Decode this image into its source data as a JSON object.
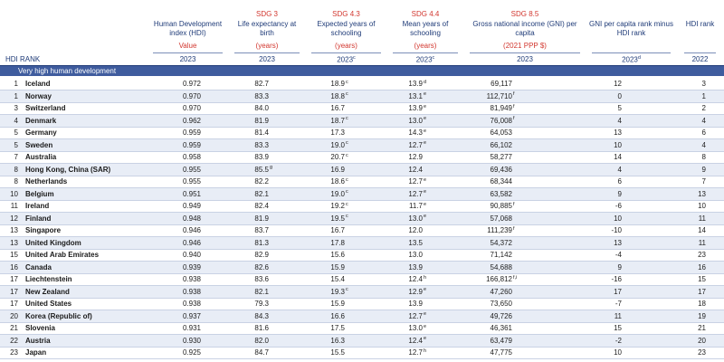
{
  "table": {
    "rank_label": "HDI RANK",
    "section": "Very high human development",
    "columns": [
      {
        "title": "Human Development index (HDI)",
        "unit": "Value",
        "year": "2023"
      },
      {
        "sdg": "SDG 3",
        "title": "Life expectancy at birth",
        "unit": "(years)",
        "year": "2023"
      },
      {
        "sdg": "SDG 4.3",
        "title": "Expected years of schooling",
        "unit": "(years)",
        "year": "2023",
        "year_note": "c"
      },
      {
        "sdg": "SDG 4.4",
        "title": "Mean years of schooling",
        "unit": "(years)",
        "year": "2023",
        "year_note": "c"
      },
      {
        "sdg": "SDG 8.5",
        "title": "Gross national income (GNI) per capita",
        "unit": "(2021 PPP $)",
        "year": "2023"
      },
      {
        "title": "GNI per capita rank minus HDI rank",
        "year": "2023",
        "year_note": "d"
      },
      {
        "title": "HDI rank",
        "year": "2022"
      }
    ],
    "rows": [
      [
        "1",
        "Iceland",
        "0.972",
        "82.7",
        {
          "text": "18.9",
          "note": "c"
        },
        {
          "text": "13.9",
          "note": "d"
        },
        "69,117",
        "12",
        "3"
      ],
      [
        "1",
        "Norway",
        "0.970",
        "83.3",
        {
          "text": "18.8",
          "note": "c"
        },
        {
          "text": "13.1",
          "note": "e"
        },
        {
          "text": "112,710",
          "note": "f"
        },
        "0",
        "1"
      ],
      [
        "3",
        "Switzerland",
        "0.970",
        "84.0",
        "16.7",
        {
          "text": "13.9",
          "note": "e"
        },
        {
          "text": "81,949",
          "note": "f"
        },
        "5",
        "2"
      ],
      [
        "4",
        "Denmark",
        "0.962",
        "81.9",
        {
          "text": "18.7",
          "note": "c"
        },
        {
          "text": "13.0",
          "note": "e"
        },
        {
          "text": "76,008",
          "note": "f"
        },
        "4",
        "4"
      ],
      [
        "5",
        "Germany",
        "0.959",
        "81.4",
        "17.3",
        {
          "text": "14.3",
          "note": "e"
        },
        "64,053",
        "13",
        "6"
      ],
      [
        "5",
        "Sweden",
        "0.959",
        "83.3",
        {
          "text": "19.0",
          "note": "c"
        },
        {
          "text": "12.7",
          "note": "e"
        },
        "66,102",
        "10",
        "4"
      ],
      [
        "7",
        "Australia",
        "0.958",
        "83.9",
        {
          "text": "20.7",
          "note": "c"
        },
        "12.9",
        "58,277",
        "14",
        "8"
      ],
      [
        "8",
        "Hong Kong, China (SAR)",
        "0.955",
        {
          "text": "85.5",
          "note": "g"
        },
        "16.9",
        "12.4",
        "69,436",
        "4",
        "9"
      ],
      [
        "8",
        "Netherlands",
        "0.955",
        "82.2",
        {
          "text": "18.6",
          "note": "c"
        },
        {
          "text": "12.7",
          "note": "e"
        },
        "68,344",
        "6",
        "7"
      ],
      [
        "10",
        "Belgium",
        "0.951",
        "82.1",
        {
          "text": "19.0",
          "note": "c"
        },
        {
          "text": "12.7",
          "note": "e"
        },
        "63,582",
        "9",
        "13"
      ],
      [
        "11",
        "Ireland",
        "0.949",
        "82.4",
        {
          "text": "19.2",
          "note": "c"
        },
        {
          "text": "11.7",
          "note": "e"
        },
        {
          "text": "90,885",
          "note": "f"
        },
        "-6",
        "10"
      ],
      [
        "12",
        "Finland",
        "0.948",
        "81.9",
        {
          "text": "19.5",
          "note": "c"
        },
        {
          "text": "13.0",
          "note": "e"
        },
        "57,068",
        "10",
        "11"
      ],
      [
        "13",
        "Singapore",
        "0.946",
        "83.7",
        "16.7",
        "12.0",
        {
          "text": "111,239",
          "note": "f"
        },
        "-10",
        "14"
      ],
      [
        "13",
        "United Kingdom",
        "0.946",
        "81.3",
        "17.8",
        "13.5",
        "54,372",
        "13",
        "11"
      ],
      [
        "15",
        "United Arab Emirates",
        "0.940",
        "82.9",
        "15.6",
        "13.0",
        "71,142",
        "-4",
        "23"
      ],
      [
        "16",
        "Canada",
        "0.939",
        "82.6",
        "15.9",
        "13.9",
        "54,688",
        "9",
        "16"
      ],
      [
        "17",
        "Liechtenstein",
        "0.938",
        "83.6",
        "15.4",
        {
          "text": "12.4",
          "note": "h"
        },
        {
          "text": "166,812",
          "note": "f,i"
        },
        "-16",
        "15"
      ],
      [
        "17",
        "New Zealand",
        "0.938",
        "82.1",
        {
          "text": "19.3",
          "note": "c"
        },
        {
          "text": "12.9",
          "note": "e"
        },
        "47,260",
        "17",
        "17"
      ],
      [
        "17",
        "United States",
        "0.938",
        "79.3",
        "15.9",
        "13.9",
        "73,650",
        "-7",
        "18"
      ],
      [
        "20",
        "Korea (Republic of)",
        "0.937",
        "84.3",
        "16.6",
        {
          "text": "12.7",
          "note": "e"
        },
        "49,726",
        "11",
        "19"
      ],
      [
        "21",
        "Slovenia",
        "0.931",
        "81.6",
        "17.5",
        {
          "text": "13.0",
          "note": "e"
        },
        "46,361",
        "15",
        "21"
      ],
      [
        "22",
        "Austria",
        "0.930",
        "82.0",
        "16.3",
        {
          "text": "12.4",
          "note": "e"
        },
        "63,479",
        "-2",
        "20"
      ],
      [
        "23",
        "Japan",
        "0.925",
        "84.7",
        "15.5",
        {
          "text": "12.7",
          "note": "h"
        },
        "47,775",
        "10",
        "23"
      ]
    ]
  }
}
